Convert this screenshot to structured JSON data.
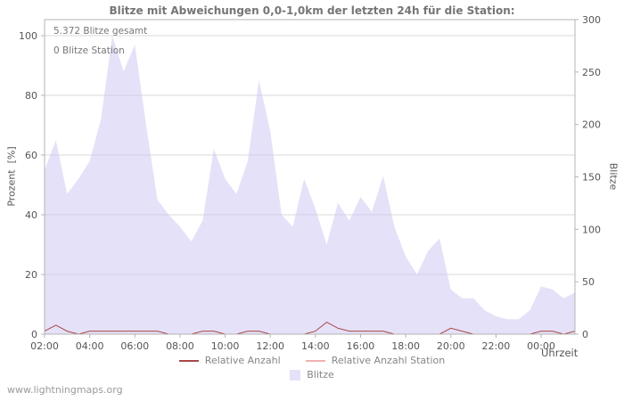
{
  "page": {
    "watermark": "www.lightningmaps.org"
  },
  "chart": {
    "title": "Blitze mit Abweichungen 0,0-1,0km der letzten 24h für die Station:",
    "annotation_total": "5.372 Blitze gesamt",
    "annotation_station": "0 Blitze Station",
    "ylabel_left": "Prozent  [%]",
    "ylabel_right": "Blitze",
    "xlabel": "Uhrzeit",
    "legend": {
      "relative": "Relative Anzahl",
      "relative_station": "Relative Anzahl Station",
      "blitze": "Blitze"
    },
    "colors": {
      "area": "#cfc9f2",
      "line": "#a84848",
      "line_station": "#f0b0b0",
      "grid": "#d9d9d9",
      "frame": "#b4b4b4",
      "text": "#555555"
    }
  },
  "chart_data": {
    "type": "area",
    "title": "Blitze mit Abweichungen 0,0-1,0km der letzten 24h für die Station:",
    "xlabel": "Uhrzeit",
    "ylabel_left": "Prozent [%]",
    "ylabel_right": "Blitze",
    "ylim_left": [
      0,
      100
    ],
    "ylim_right": [
      0,
      300
    ],
    "x_start": "02:00",
    "x_span_hours": 23.5,
    "x_step_hours": 0.5,
    "x_ticks": [
      "02:00",
      "04:00",
      "06:00",
      "08:00",
      "10:00",
      "12:00",
      "14:00",
      "16:00",
      "18:00",
      "20:00",
      "22:00",
      "00:00"
    ],
    "x_tick_interval_hours": 2,
    "y_ticks_left": [
      0,
      20,
      40,
      60,
      80,
      100
    ],
    "y_ticks_right": [
      0,
      50,
      100,
      150,
      200,
      250,
      300
    ],
    "annotations": [
      "5.372 Blitze gesamt",
      "0 Blitze Station"
    ],
    "total_blitze": 5372,
    "station_blitze": 0,
    "legend_position": "bottom",
    "grid": true,
    "series": [
      {
        "name": "Blitze",
        "type": "area",
        "unit": "percent_left_axis",
        "values": [
          55,
          65,
          47,
          52,
          58,
          72,
          100,
          88,
          97,
          70,
          45,
          40,
          36,
          31,
          38,
          62,
          52,
          47,
          58,
          85,
          68,
          40,
          36,
          52,
          42,
          30,
          44,
          38,
          46,
          41,
          53,
          36,
          26,
          20,
          28,
          32,
          15,
          12,
          12,
          8,
          6,
          5,
          5,
          8,
          16,
          15,
          12,
          14
        ]
      },
      {
        "name": "Relative Anzahl",
        "type": "line",
        "unit": "percent_left_axis",
        "values": [
          1,
          3,
          1,
          0,
          1,
          1,
          1,
          1,
          1,
          1,
          1,
          0,
          0,
          0,
          1,
          1,
          0,
          0,
          1,
          1,
          0,
          0,
          0,
          0,
          1,
          4,
          2,
          1,
          1,
          1,
          1,
          0,
          0,
          0,
          0,
          0,
          2,
          1,
          0,
          0,
          0,
          0,
          0,
          0,
          1,
          1,
          0,
          1
        ]
      },
      {
        "name": "Relative Anzahl Station",
        "type": "line",
        "unit": "percent_left_axis",
        "values": [
          0,
          0,
          0,
          0,
          0,
          0,
          0,
          0,
          0,
          0,
          0,
          0,
          0,
          0,
          0,
          0,
          0,
          0,
          0,
          0,
          0,
          0,
          0,
          0,
          0,
          0,
          0,
          0,
          0,
          0,
          0,
          0,
          0,
          0,
          0,
          0,
          0,
          0,
          0,
          0,
          0,
          0,
          0,
          0,
          0,
          0,
          0,
          0
        ]
      }
    ]
  }
}
